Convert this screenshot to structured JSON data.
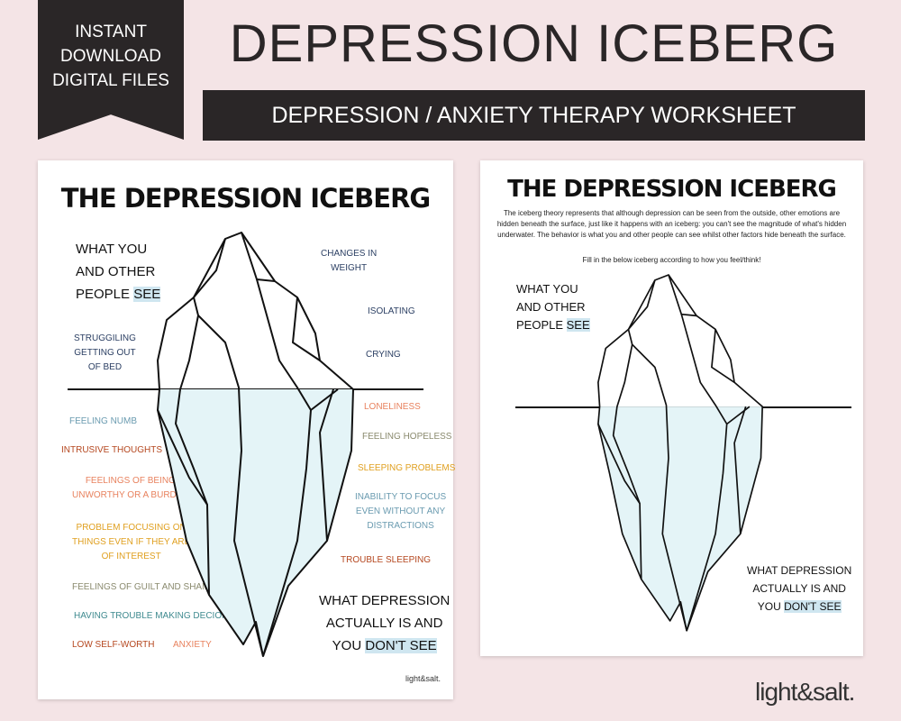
{
  "ribbon": {
    "line1": "INSTANT",
    "line2": "DOWNLOAD",
    "line3": "DIGITAL FILES"
  },
  "header": {
    "title": "DEPRESSION ICEBERG",
    "subtitle": "DEPRESSION / ANXIETY THERAPY WORKSHEET"
  },
  "colors": {
    "background": "#f4e4e6",
    "banner": "#2a2627",
    "ice_fill": "#e4f4f7",
    "highlight": "#cfe6f0"
  },
  "page1": {
    "title": "THE DEPRESSION ICEBERG",
    "see_label": {
      "line1": "WHAT YOU",
      "line2": "AND OTHER",
      "line3a": "PEOPLE ",
      "line3b": "SEE"
    },
    "dont_see_label": {
      "line1": "WHAT DEPRESSION",
      "line2": "ACTUALLY IS AND",
      "line3a": "YOU ",
      "line3b": "DON'T SEE"
    },
    "above": [
      {
        "text": "CHANGES IN\nWEIGHT",
        "color": "#2b3f63"
      },
      {
        "text": "ISOLATING",
        "color": "#2b3f63"
      },
      {
        "text": "CRYING",
        "color": "#2b3f63"
      },
      {
        "text": "STRUGGILING\nGETTING OUT\nOF BED",
        "color": "#2b3f63"
      }
    ],
    "below": [
      {
        "text": "FEELING NUMB",
        "color": "#6a9bb0"
      },
      {
        "text": "INTRUSIVE THOUGHTS",
        "color": "#b5471f"
      },
      {
        "text": "FEELINGS OF BEING\nUNWORTHY OR A BURDEN",
        "color": "#e8825e"
      },
      {
        "text": "PROBLEM FOCUSING ON\nTHINGS EVEN IF THEY ARE\nOF INTEREST",
        "color": "#e0a020"
      },
      {
        "text": "FEELINGS OF GUILT AND SHAME",
        "color": "#8a8a6e"
      },
      {
        "text": "HAVING TROUBLE MAKING DECIONS",
        "color": "#3f8a8f"
      },
      {
        "text": "LOW SELF-WORTH",
        "color": "#b5471f"
      },
      {
        "text": "ANXIETY",
        "color": "#e8825e"
      },
      {
        "text": "LONELINESS",
        "color": "#e8825e"
      },
      {
        "text": "FEELING HOPELESS",
        "color": "#8a8a6e"
      },
      {
        "text": "SLEEPING PROBLEMS",
        "color": "#e0a020"
      },
      {
        "text": "INABILITY TO FOCUS\nEVEN WITHOUT ANY\nDISTRACTIONS",
        "color": "#6a9bb0"
      },
      {
        "text": "TROUBLE SLEEPING",
        "color": "#b5471f"
      }
    ],
    "logo": "light&salt."
  },
  "page2": {
    "title": "THE DEPRESSION ICEBERG",
    "intro": "The iceberg theory represents that although depression can be seen from the outside, other emotions are hidden beneath the surface, just like it happens with an iceberg: you can't see the magnitude of what's hidden underwater. The behavior is what you and other people can see whilst other factors hide beneath the surface.",
    "instruction": "Fill in the below iceberg according to how you feel/think!",
    "see_label": {
      "line1": "WHAT YOU",
      "line2": "AND OTHER",
      "line3a": "PEOPLE ",
      "line3b": "SEE"
    },
    "dont_see_label": {
      "line1": "WHAT DEPRESSION",
      "line2": "ACTUALLY IS AND",
      "line3a": "YOU ",
      "line3b": "DON'T SEE"
    }
  },
  "brand": "light&salt."
}
